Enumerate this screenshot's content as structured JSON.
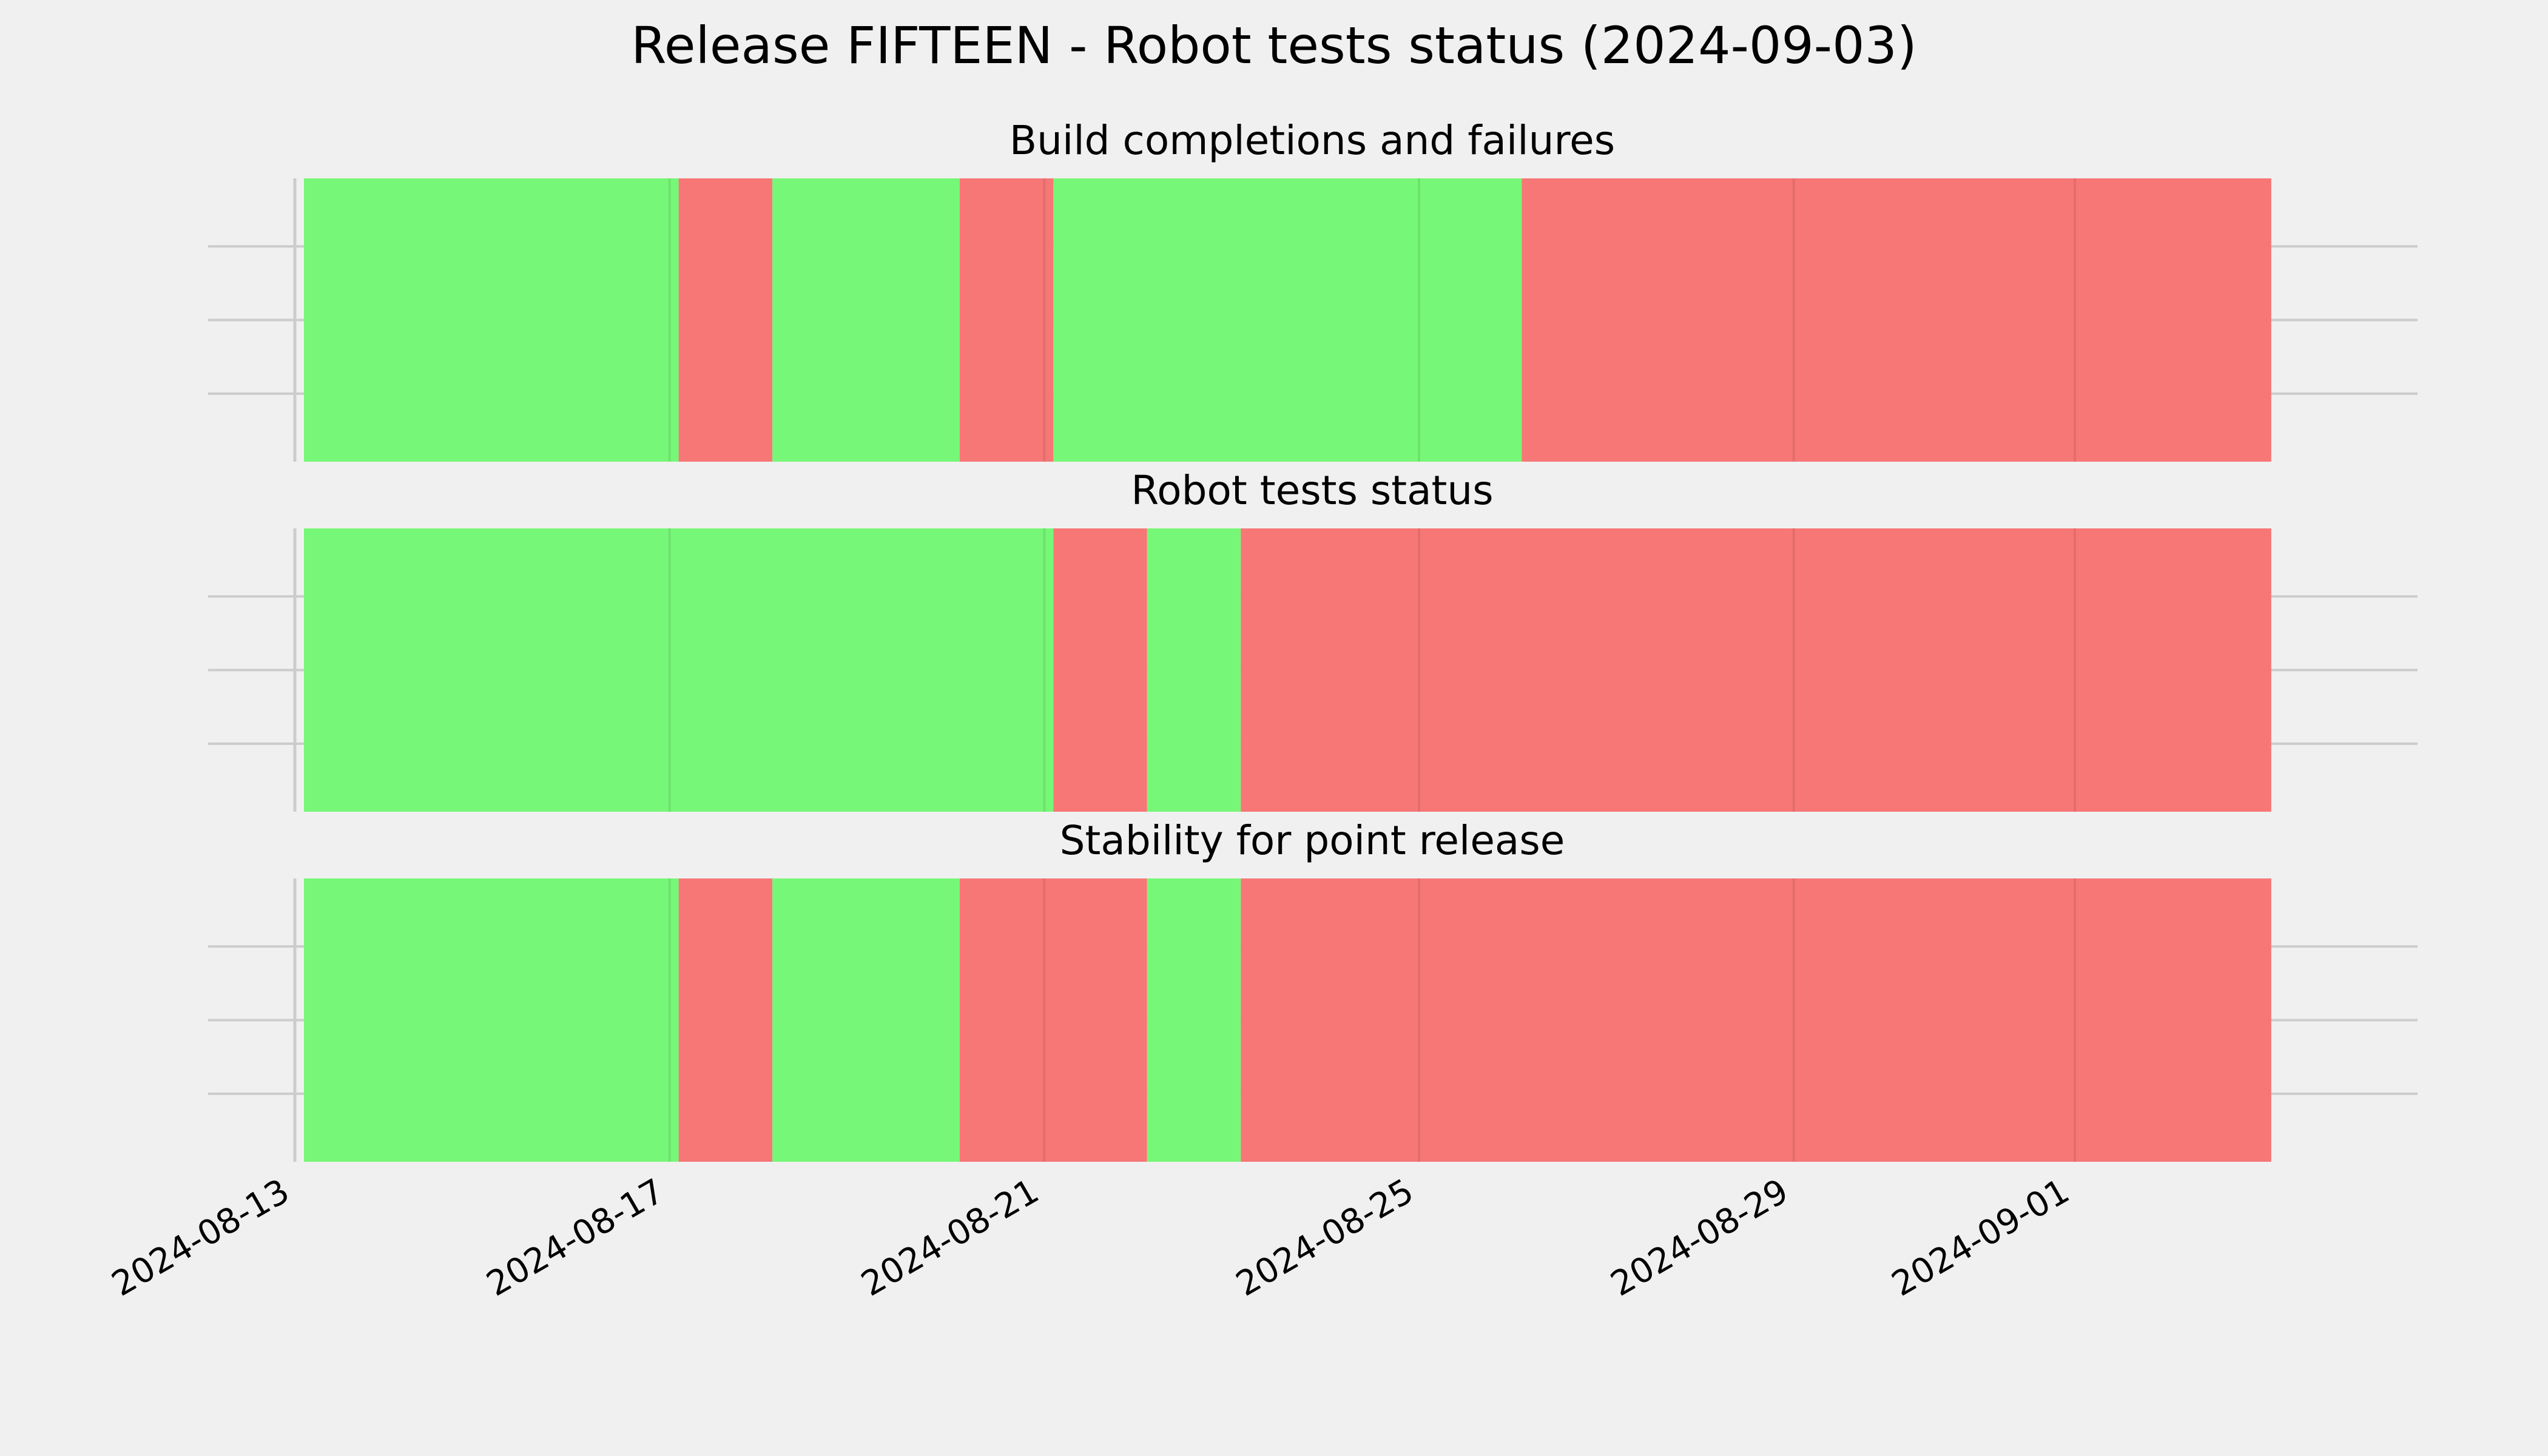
{
  "chart_data": {
    "type": "timeline-status",
    "title": "Release FIFTEEN - Robot tests status (2024-09-03)",
    "x_type": "date",
    "xlim": [
      "2024-08-13",
      "2024-09-03"
    ],
    "x_ticks": [
      "2024-08-13",
      "2024-08-17",
      "2024-08-21",
      "2024-08-25",
      "2024-08-29",
      "2024-09-01"
    ],
    "x_tick_labels": [
      "2024-08-13",
      "2024-08-17",
      "2024-08-21",
      "2024-08-25",
      "2024-08-29",
      "2024-09-01"
    ],
    "grid": true,
    "colors": {
      "pass": "#77f777",
      "fail": "#f77777",
      "background": "#f0f0f0"
    },
    "panels": [
      {
        "name": "build",
        "title": "Build completions and failures",
        "segments": [
          {
            "start": "2024-08-13",
            "end": "2024-08-17",
            "status": "pass"
          },
          {
            "start": "2024-08-17",
            "end": "2024-08-18",
            "status": "fail"
          },
          {
            "start": "2024-08-18",
            "end": "2024-08-20",
            "status": "pass"
          },
          {
            "start": "2024-08-20",
            "end": "2024-08-21",
            "status": "fail"
          },
          {
            "start": "2024-08-21",
            "end": "2024-08-26",
            "status": "pass"
          },
          {
            "start": "2024-08-26",
            "end": "2024-09-03",
            "status": "fail"
          }
        ]
      },
      {
        "name": "robot",
        "title": "Robot tests status",
        "segments": [
          {
            "start": "2024-08-13",
            "end": "2024-08-21",
            "status": "pass"
          },
          {
            "start": "2024-08-21",
            "end": "2024-08-22",
            "status": "fail"
          },
          {
            "start": "2024-08-22",
            "end": "2024-08-23",
            "status": "pass"
          },
          {
            "start": "2024-08-23",
            "end": "2024-09-03",
            "status": "fail"
          }
        ]
      },
      {
        "name": "stability",
        "title": "Stability for point release",
        "segments": [
          {
            "start": "2024-08-13",
            "end": "2024-08-17",
            "status": "pass"
          },
          {
            "start": "2024-08-17",
            "end": "2024-08-18",
            "status": "fail"
          },
          {
            "start": "2024-08-18",
            "end": "2024-08-20",
            "status": "pass"
          },
          {
            "start": "2024-08-20",
            "end": "2024-08-22",
            "status": "fail"
          },
          {
            "start": "2024-08-22",
            "end": "2024-08-23",
            "status": "pass"
          },
          {
            "start": "2024-08-23",
            "end": "2024-09-03",
            "status": "fail"
          }
        ]
      }
    ]
  }
}
